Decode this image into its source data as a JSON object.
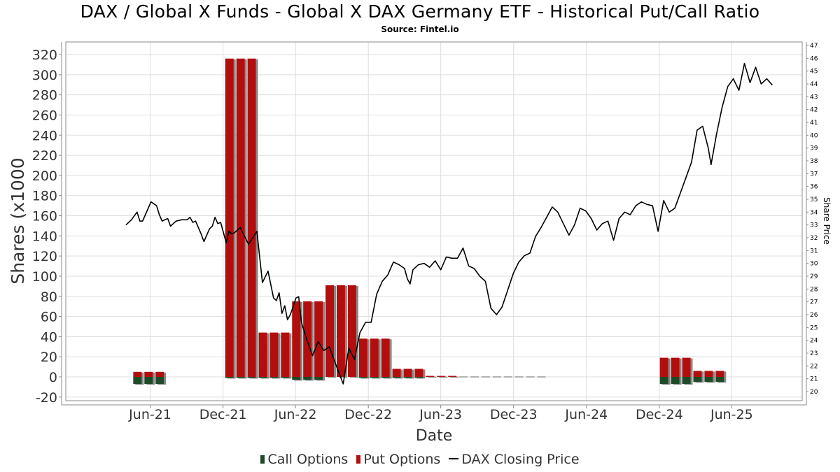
{
  "title": "DAX / Global X Funds - Global X DAX Germany ETF - Historical Put/Call Ratio",
  "subtitle": "Source: Fintel.io",
  "colors": {
    "call": "#1e4a28",
    "put": "#b30e0e",
    "price_line": "#000000",
    "grid": "#dddddd",
    "shadow": "#8a8a8a"
  },
  "legend": {
    "call_label": "Call Options",
    "put_label": "Put Options",
    "price_label": "DAX Closing Price"
  },
  "chart_data": {
    "type": "bar",
    "xlabel": "Date",
    "ylabel": "Shares (x1000",
    "y2label": "Share Price",
    "ylim": [
      -20,
      330
    ],
    "y2lim": [
      20,
      47
    ],
    "grid": true,
    "legend_position": "bottom",
    "x_ticks": [
      {
        "label": "Jun-21",
        "date": "2021-06-01"
      },
      {
        "label": "Dec-21",
        "date": "2021-12-01"
      },
      {
        "label": "Jun-22",
        "date": "2022-06-01"
      },
      {
        "label": "Dec-22",
        "date": "2022-12-01"
      },
      {
        "label": "Jun-23",
        "date": "2023-06-01"
      },
      {
        "label": "Dec-23",
        "date": "2023-12-01"
      },
      {
        "label": "Jun-24",
        "date": "2024-06-01"
      },
      {
        "label": "Dec-24",
        "date": "2024-12-01"
      },
      {
        "label": "Jun-25",
        "date": "2025-06-01"
      }
    ],
    "y_ticks": [
      -20,
      0,
      20,
      40,
      60,
      80,
      100,
      120,
      140,
      160,
      180,
      200,
      220,
      240,
      260,
      280,
      300,
      320
    ],
    "y2_ticks": [
      20,
      21,
      22,
      23,
      24,
      25,
      26,
      27,
      28,
      29,
      30,
      31,
      32,
      33,
      34,
      35,
      36,
      37,
      38,
      39,
      40,
      41,
      42,
      43,
      44,
      45,
      46,
      47
    ],
    "series": [
      {
        "name": "Put Options",
        "points": [
          {
            "date": "2021-04-30",
            "value": 5
          },
          {
            "date": "2021-05-28",
            "value": 5
          },
          {
            "date": "2021-06-25",
            "value": 5
          },
          {
            "date": "2021-12-17",
            "value": 316
          },
          {
            "date": "2022-01-14",
            "value": 316
          },
          {
            "date": "2022-02-11",
            "value": 316
          },
          {
            "date": "2022-03-11",
            "value": 44
          },
          {
            "date": "2022-04-08",
            "value": 44
          },
          {
            "date": "2022-05-06",
            "value": 44
          },
          {
            "date": "2022-06-03",
            "value": 75
          },
          {
            "date": "2022-07-01",
            "value": 75
          },
          {
            "date": "2022-07-29",
            "value": 75
          },
          {
            "date": "2022-08-26",
            "value": 91
          },
          {
            "date": "2022-09-23",
            "value": 91
          },
          {
            "date": "2022-10-21",
            "value": 91
          },
          {
            "date": "2022-11-18",
            "value": 38
          },
          {
            "date": "2022-12-16",
            "value": 38
          },
          {
            "date": "2023-01-13",
            "value": 38
          },
          {
            "date": "2023-02-10",
            "value": 8
          },
          {
            "date": "2023-03-10",
            "value": 8
          },
          {
            "date": "2023-04-07",
            "value": 8
          },
          {
            "date": "2023-05-05",
            "value": 1
          },
          {
            "date": "2023-06-02",
            "value": 1
          },
          {
            "date": "2023-06-30",
            "value": 1
          },
          {
            "date": "2023-07-28",
            "value": 0
          },
          {
            "date": "2023-08-25",
            "value": 0
          },
          {
            "date": "2023-09-22",
            "value": 0
          },
          {
            "date": "2023-10-20",
            "value": 0
          },
          {
            "date": "2023-11-17",
            "value": 0
          },
          {
            "date": "2023-12-15",
            "value": 0
          },
          {
            "date": "2024-01-12",
            "value": 0
          },
          {
            "date": "2024-02-09",
            "value": 0
          },
          {
            "date": "2024-12-13",
            "value": 19
          },
          {
            "date": "2025-01-10",
            "value": 19
          },
          {
            "date": "2025-02-07",
            "value": 19
          },
          {
            "date": "2025-03-07",
            "value": 6
          },
          {
            "date": "2025-04-04",
            "value": 6
          },
          {
            "date": "2025-05-02",
            "value": 6
          }
        ]
      },
      {
        "name": "Call Options",
        "points": [
          {
            "date": "2021-04-30",
            "value": -7
          },
          {
            "date": "2021-05-28",
            "value": -7
          },
          {
            "date": "2021-06-25",
            "value": -7
          },
          {
            "date": "2021-12-17",
            "value": -1
          },
          {
            "date": "2022-01-14",
            "value": -1
          },
          {
            "date": "2022-02-11",
            "value": -1
          },
          {
            "date": "2022-03-11",
            "value": -1
          },
          {
            "date": "2022-04-08",
            "value": -1
          },
          {
            "date": "2022-05-06",
            "value": -1
          },
          {
            "date": "2022-06-03",
            "value": -3
          },
          {
            "date": "2022-07-01",
            "value": -3
          },
          {
            "date": "2022-07-29",
            "value": -3
          },
          {
            "date": "2022-08-26",
            "value": 0
          },
          {
            "date": "2022-09-23",
            "value": 0
          },
          {
            "date": "2022-10-21",
            "value": 0
          },
          {
            "date": "2022-11-18",
            "value": -1
          },
          {
            "date": "2022-12-16",
            "value": -1
          },
          {
            "date": "2023-01-13",
            "value": -1
          },
          {
            "date": "2023-02-10",
            "value": -1
          },
          {
            "date": "2023-03-10",
            "value": -1
          },
          {
            "date": "2023-04-07",
            "value": -1
          },
          {
            "date": "2024-12-13",
            "value": -7
          },
          {
            "date": "2025-01-10",
            "value": -7
          },
          {
            "date": "2025-02-07",
            "value": -7
          },
          {
            "date": "2025-03-07",
            "value": -5
          },
          {
            "date": "2025-04-04",
            "value": -5
          },
          {
            "date": "2025-05-02",
            "value": -5
          }
        ]
      },
      {
        "name": "DAX Closing Price",
        "type": "line",
        "axis": "right",
        "points": [
          {
            "date": "2021-04-01",
            "value": 33.0
          },
          {
            "date": "2021-04-15",
            "value": 33.4
          },
          {
            "date": "2021-04-29",
            "value": 34.0
          },
          {
            "date": "2021-05-06",
            "value": 33.3
          },
          {
            "date": "2021-05-13",
            "value": 33.3
          },
          {
            "date": "2021-05-20",
            "value": 33.8
          },
          {
            "date": "2021-06-03",
            "value": 34.8
          },
          {
            "date": "2021-06-17",
            "value": 34.5
          },
          {
            "date": "2021-06-24",
            "value": 33.8
          },
          {
            "date": "2021-07-01",
            "value": 33.3
          },
          {
            "date": "2021-07-15",
            "value": 33.5
          },
          {
            "date": "2021-07-22",
            "value": 32.9
          },
          {
            "date": "2021-08-05",
            "value": 33.3
          },
          {
            "date": "2021-08-19",
            "value": 33.4
          },
          {
            "date": "2021-09-02",
            "value": 33.4
          },
          {
            "date": "2021-09-09",
            "value": 33.6
          },
          {
            "date": "2021-09-16",
            "value": 33.2
          },
          {
            "date": "2021-09-23",
            "value": 33.3
          },
          {
            "date": "2021-10-07",
            "value": 32.3
          },
          {
            "date": "2021-10-14",
            "value": 31.7
          },
          {
            "date": "2021-10-28",
            "value": 32.7
          },
          {
            "date": "2021-11-04",
            "value": 32.9
          },
          {
            "date": "2021-11-11",
            "value": 33.6
          },
          {
            "date": "2021-11-18",
            "value": 33.1
          },
          {
            "date": "2021-11-25",
            "value": 33.2
          },
          {
            "date": "2021-12-09",
            "value": 31.6
          },
          {
            "date": "2021-12-16",
            "value": 32.5
          },
          {
            "date": "2021-12-23",
            "value": 32.3
          },
          {
            "date": "2021-12-30",
            "value": 32.4
          },
          {
            "date": "2022-01-13",
            "value": 32.8
          },
          {
            "date": "2022-02-03",
            "value": 31.5
          },
          {
            "date": "2022-02-24",
            "value": 32.5
          },
          {
            "date": "2022-03-10",
            "value": 28.5
          },
          {
            "date": "2022-03-24",
            "value": 29.4
          },
          {
            "date": "2022-04-07",
            "value": 27.3
          },
          {
            "date": "2022-04-14",
            "value": 27.1
          },
          {
            "date": "2022-04-21",
            "value": 27.7
          },
          {
            "date": "2022-04-28",
            "value": 26.1
          },
          {
            "date": "2022-05-05",
            "value": 26.7
          },
          {
            "date": "2022-05-12",
            "value": 25.6
          },
          {
            "date": "2022-05-19",
            "value": 26.0
          },
          {
            "date": "2022-05-26",
            "value": 26.6
          },
          {
            "date": "2022-06-02",
            "value": 27.3
          },
          {
            "date": "2022-06-09",
            "value": 27.4
          },
          {
            "date": "2022-06-16",
            "value": 25.4
          },
          {
            "date": "2022-06-30",
            "value": 24.0
          },
          {
            "date": "2022-07-14",
            "value": 22.8
          },
          {
            "date": "2022-07-28",
            "value": 23.9
          },
          {
            "date": "2022-08-11",
            "value": 23.2
          },
          {
            "date": "2022-08-25",
            "value": 23.5
          },
          {
            "date": "2022-09-08",
            "value": 22.3
          },
          {
            "date": "2022-09-29",
            "value": 20.6
          },
          {
            "date": "2022-10-13",
            "value": 23.4
          },
          {
            "date": "2022-10-27",
            "value": 22.5
          },
          {
            "date": "2022-11-10",
            "value": 24.6
          },
          {
            "date": "2022-11-24",
            "value": 25.4
          },
          {
            "date": "2022-12-08",
            "value": 25.4
          },
          {
            "date": "2022-12-22",
            "value": 27.6
          },
          {
            "date": "2023-01-05",
            "value": 28.6
          },
          {
            "date": "2023-01-19",
            "value": 29.1
          },
          {
            "date": "2023-02-02",
            "value": 30.1
          },
          {
            "date": "2023-02-16",
            "value": 29.9
          },
          {
            "date": "2023-03-02",
            "value": 29.6
          },
          {
            "date": "2023-03-09",
            "value": 28.8
          },
          {
            "date": "2023-03-16",
            "value": 28.4
          },
          {
            "date": "2023-03-23",
            "value": 29.5
          },
          {
            "date": "2023-04-06",
            "value": 29.9
          },
          {
            "date": "2023-04-20",
            "value": 30.0
          },
          {
            "date": "2023-05-04",
            "value": 29.7
          },
          {
            "date": "2023-05-18",
            "value": 30.2
          },
          {
            "date": "2023-06-01",
            "value": 29.5
          },
          {
            "date": "2023-06-15",
            "value": 30.5
          },
          {
            "date": "2023-06-29",
            "value": 30.4
          },
          {
            "date": "2023-07-13",
            "value": 30.4
          },
          {
            "date": "2023-07-27",
            "value": 31.2
          },
          {
            "date": "2023-08-10",
            "value": 29.8
          },
          {
            "date": "2023-08-24",
            "value": 29.6
          },
          {
            "date": "2023-09-07",
            "value": 29.0
          },
          {
            "date": "2023-09-21",
            "value": 28.6
          },
          {
            "date": "2023-10-05",
            "value": 26.5
          },
          {
            "date": "2023-10-19",
            "value": 26.0
          },
          {
            "date": "2023-11-02",
            "value": 26.6
          },
          {
            "date": "2023-11-16",
            "value": 27.9
          },
          {
            "date": "2023-11-30",
            "value": 29.2
          },
          {
            "date": "2023-12-14",
            "value": 30.1
          },
          {
            "date": "2023-12-28",
            "value": 30.6
          },
          {
            "date": "2024-01-11",
            "value": 30.8
          },
          {
            "date": "2024-01-25",
            "value": 32.1
          },
          {
            "date": "2024-02-08",
            "value": 32.8
          },
          {
            "date": "2024-02-22",
            "value": 33.6
          },
          {
            "date": "2024-03-07",
            "value": 34.4
          },
          {
            "date": "2024-03-21",
            "value": 34.0
          },
          {
            "date": "2024-04-04",
            "value": 33.1
          },
          {
            "date": "2024-04-18",
            "value": 32.2
          },
          {
            "date": "2024-05-02",
            "value": 33.0
          },
          {
            "date": "2024-05-16",
            "value": 34.3
          },
          {
            "date": "2024-05-30",
            "value": 34.1
          },
          {
            "date": "2024-06-13",
            "value": 33.5
          },
          {
            "date": "2024-06-27",
            "value": 32.6
          },
          {
            "date": "2024-07-11",
            "value": 33.1
          },
          {
            "date": "2024-07-25",
            "value": 33.3
          },
          {
            "date": "2024-08-08",
            "value": 31.8
          },
          {
            "date": "2024-08-22",
            "value": 33.5
          },
          {
            "date": "2024-09-05",
            "value": 34.0
          },
          {
            "date": "2024-09-19",
            "value": 33.8
          },
          {
            "date": "2024-10-03",
            "value": 34.5
          },
          {
            "date": "2024-10-17",
            "value": 34.8
          },
          {
            "date": "2024-10-31",
            "value": 34.6
          },
          {
            "date": "2024-11-14",
            "value": 34.5
          },
          {
            "date": "2024-11-28",
            "value": 32.5
          },
          {
            "date": "2024-12-12",
            "value": 34.9
          },
          {
            "date": "2024-12-26",
            "value": 34.0
          },
          {
            "date": "2025-01-09",
            "value": 34.3
          },
          {
            "date": "2025-01-23",
            "value": 35.5
          },
          {
            "date": "2025-02-06",
            "value": 36.7
          },
          {
            "date": "2025-02-20",
            "value": 37.9
          },
          {
            "date": "2025-03-06",
            "value": 40.4
          },
          {
            "date": "2025-03-20",
            "value": 40.7
          },
          {
            "date": "2025-04-03",
            "value": 39.0
          },
          {
            "date": "2025-04-10",
            "value": 37.7
          },
          {
            "date": "2025-04-24",
            "value": 40.1
          },
          {
            "date": "2025-05-08",
            "value": 42.2
          },
          {
            "date": "2025-05-22",
            "value": 43.8
          },
          {
            "date": "2025-06-05",
            "value": 44.4
          },
          {
            "date": "2025-06-19",
            "value": 43.5
          },
          {
            "date": "2025-07-03",
            "value": 45.6
          },
          {
            "date": "2025-07-17",
            "value": 44.1
          },
          {
            "date": "2025-07-31",
            "value": 45.3
          },
          {
            "date": "2025-08-14",
            "value": 44.0
          },
          {
            "date": "2025-08-28",
            "value": 44.4
          },
          {
            "date": "2025-09-11",
            "value": 43.9
          }
        ]
      }
    ]
  }
}
